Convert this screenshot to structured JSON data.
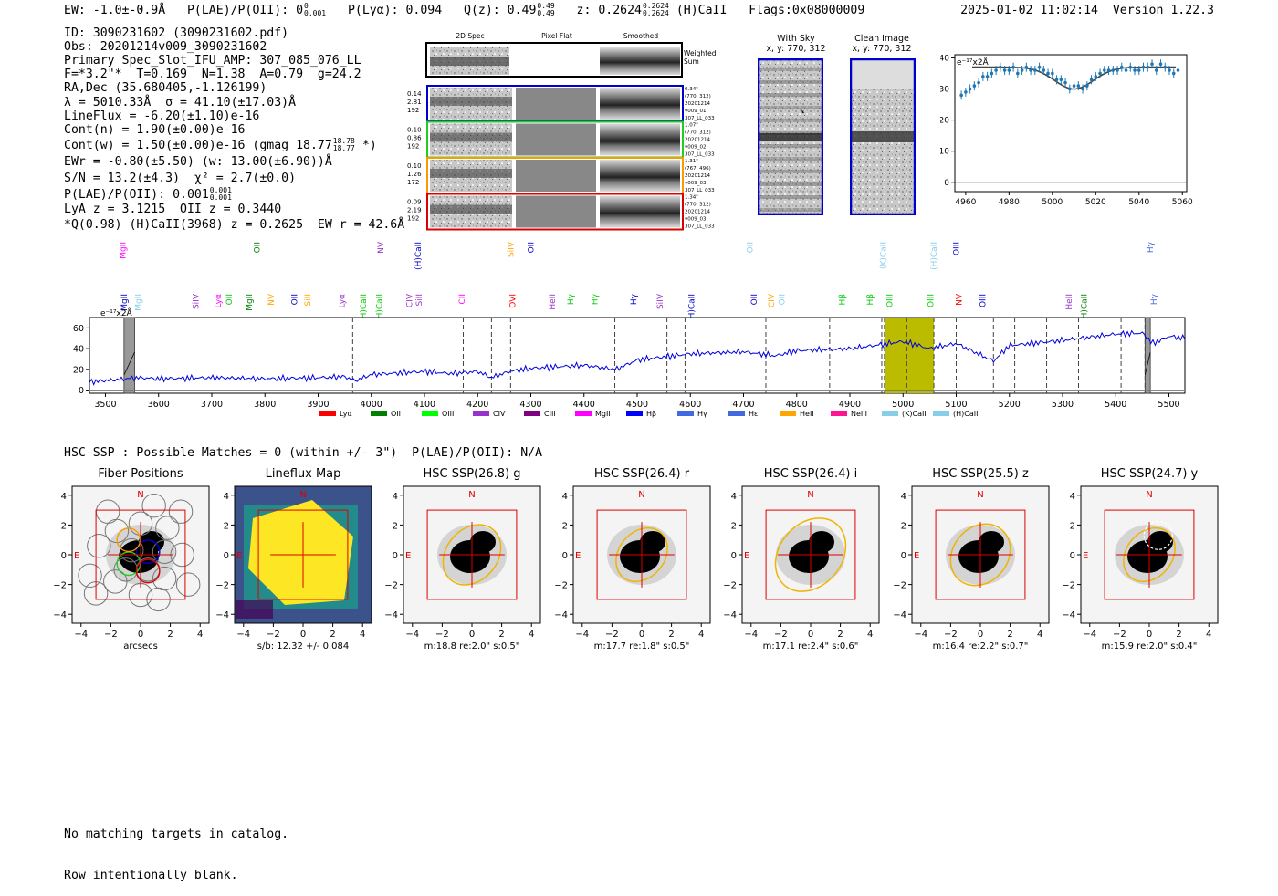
{
  "header": {
    "ew": "EW: -1.0±-0.9Å",
    "plae_label": "P(LAE)/P(OII): 0",
    "plae_sup": "0",
    "plae_sub": "0.001",
    "plya": "P(Lyα): 0.094",
    "qz": "Q(z): 0.49",
    "qz_sup": "0.49",
    "qz_sub": "0.49",
    "z": "z: 0.2624",
    "z_sup": "0.2624",
    "z_sub": "0.2624",
    "hcaii": "(H)CaII",
    "flags": "Flags:0x08000009",
    "datetime": "2025-01-02 11:02:14",
    "version": "Version 1.22.3"
  },
  "info": {
    "id": "ID: 3090231602 (3090231602.pdf)",
    "obs": "Obs: 20201214v009_3090231602",
    "primary": "Primary Spec_Slot_IFU_AMP: 307_085_076_LL",
    "params": "F=*3.2\"*  T=0.169  N=1.38  A=0.79  g=24.2",
    "radec": "RA,Dec (35.680405,-1.126199)",
    "lambda": "λ = 5010.33Å  σ = 41.10(±17.03)Å",
    "lineflux": "LineFlux = -6.20(±1.10)e-16",
    "contn": "Cont(n) = 1.90(±0.00)e-16",
    "contw": "Cont(w) = 1.50(±0.00)e-16 (gmag 18.77",
    "contw_sup": "18.78",
    "contw_sub": "18.77",
    "contw_end": "*)",
    "ewr": "EWr = -0.80(±5.50) (w: 13.00(±6.90))Å",
    "sn": "S/N = 13.2(±4.3)  χ² = 2.7(±0.0)",
    "plae": "P(LAE)/P(OII): 0.001",
    "plae_sup": "0.001",
    "plae_sub": "0.001",
    "lya": "LyA z = 3.1215  OII z = 0.3440",
    "q": "*Q(0.98) (H)CaII(3968) z = 0.2625  EW r = 42.6Å"
  },
  "cutouts": {
    "col_2d": "2D Spec",
    "col_flat": "Pixel Flat",
    "col_smooth": "Smoothed",
    "weighted": "Weighted Sum",
    "rows": [
      {
        "l1": "0.14",
        "l2": "2.81",
        "l3": "192",
        "r1": "0.34\"",
        "r2": "(770, 312)",
        "r3": "20201214",
        "r4": "v009_01",
        "r5": "307_LL_033",
        "color": "#0000cc"
      },
      {
        "l1": "0.10",
        "l2": "0.86",
        "l3": "192",
        "r1": "1.07\"",
        "r2": "(770, 312)",
        "r3": "20201214",
        "r4": "v009_02",
        "r5": "307_LL_033",
        "color": "#22cc22"
      },
      {
        "l1": "0.10",
        "l2": "1.26",
        "l3": "172",
        "r1": "1.31\"",
        "r2": "(767, 496)",
        "r3": "20201214",
        "r4": "v009_03",
        "r5": "307_LL_033",
        "color": "#ff9900"
      },
      {
        "l1": "0.09",
        "l2": "2.19",
        "l3": "192",
        "r1": "1.34\"",
        "r2": "(770, 312)",
        "r3": "20201214",
        "r4": "v009_03",
        "r5": "307_LL_033",
        "color": "#dd0000"
      }
    ],
    "with_sky_title": "With Sky",
    "with_sky_xy": "x, y: 770, 312",
    "clean_title": "Clean Image",
    "clean_xy": "x, y: 770, 312"
  },
  "chart_data": [
    {
      "type": "scatter",
      "name": "zoom-spectrum",
      "unit_label": "e⁻¹⁷x2Å",
      "xlim": [
        4955,
        5062
      ],
      "ylim": [
        -3,
        41
      ],
      "xticks": [
        4960,
        4980,
        5000,
        5020,
        5040,
        5060
      ],
      "yticks": [
        0,
        10,
        20,
        30,
        40
      ],
      "x": [
        4958,
        4960,
        4962,
        4964,
        4966,
        4968,
        4970,
        4972,
        4974,
        4976,
        4978,
        4980,
        4982,
        4984,
        4986,
        4988,
        4990,
        4992,
        4994,
        4996,
        4998,
        5000,
        5002,
        5004,
        5006,
        5008,
        5010,
        5012,
        5014,
        5016,
        5018,
        5020,
        5022,
        5024,
        5026,
        5028,
        5030,
        5032,
        5034,
        5036,
        5038,
        5040,
        5042,
        5044,
        5046,
        5048,
        5050,
        5052,
        5054,
        5056,
        5058
      ],
      "y": [
        28,
        29,
        30,
        31,
        32,
        34,
        34,
        35,
        36,
        37,
        36,
        36,
        37,
        35,
        36,
        37,
        36,
        36,
        37,
        36,
        35,
        35,
        33,
        33,
        32,
        30,
        31,
        31,
        30,
        31,
        33,
        34,
        35,
        36,
        36,
        36,
        36,
        37,
        36,
        37,
        36,
        36,
        37,
        37,
        38,
        36,
        38,
        37,
        36,
        35,
        36
      ],
      "model": "gaussian absorption fit"
    },
    {
      "type": "line",
      "name": "full-spectrum",
      "unit_label": "e⁻¹⁷x2Å",
      "xlim": [
        3470,
        5530
      ],
      "ylim": [
        -3,
        70
      ],
      "xticks": [
        3500,
        3600,
        3700,
        3800,
        3900,
        4000,
        4100,
        4200,
        4300,
        4400,
        4500,
        4600,
        4700,
        4800,
        4900,
        5000,
        5100,
        5200,
        5300,
        5400,
        5500
      ],
      "yticks": [
        0,
        20,
        40,
        60
      ],
      "anchors_x": [
        3470,
        3520,
        3560,
        3600,
        3700,
        3800,
        3900,
        3950,
        3970,
        4000,
        4100,
        4150,
        4200,
        4226,
        4260,
        4300,
        4400,
        4460,
        4500,
        4550,
        4600,
        4700,
        4760,
        4800,
        4900,
        4960,
        5000,
        5050,
        5100,
        5170,
        5200,
        5300,
        5400,
        5450,
        5470,
        5500,
        5530
      ],
      "anchors_y": [
        8,
        10,
        12,
        11,
        12,
        11,
        12,
        13,
        9,
        15,
        18,
        16,
        18,
        12,
        18,
        21,
        24,
        20,
        29,
        32,
        35,
        37,
        33,
        38,
        40,
        44,
        47,
        40,
        45,
        28,
        43,
        48,
        54,
        55,
        45,
        52,
        50
      ],
      "shaded_regions": [
        [
          3535,
          3555
        ],
        [
          5455,
          5465
        ]
      ],
      "highlight_region": [
        4965,
        5058
      ],
      "dashed_lines": [
        3965,
        4173,
        4226,
        4262,
        4458,
        4556,
        4590,
        4742,
        4862,
        4960,
        4965,
        5007,
        5058,
        5100,
        5170,
        5210,
        5270,
        5330,
        5410,
        5455
      ],
      "legend": [
        "Lyα",
        "OII",
        "OIII",
        "CIV",
        "CIII",
        "MgII",
        "Hβ",
        "Hγ",
        "Hε",
        "HeII",
        "NeIII",
        "(K)CaII",
        "(H)CaII"
      ],
      "legend_colors": [
        "#ff0000",
        "#008000",
        "#00ff00",
        "#9932cc",
        "#800080",
        "#ff00ff",
        "#0000ff",
        "#4169e1",
        "#4169e1",
        "#ffa500",
        "#ff1493",
        "#87ceeb",
        "#87ceeb"
      ],
      "line_labels_upper": [
        {
          "t": "MgII",
          "x": 3533,
          "c": "#ff00ff"
        },
        {
          "t": "OII",
          "x": 3785,
          "c": "#008000"
        },
        {
          "t": "NV",
          "x": 4018,
          "c": "#9932cc"
        },
        {
          "t": "(H)CaII",
          "x": 4088,
          "c": "#0000cc"
        },
        {
          "t": "SiIV",
          "x": 4262,
          "c": "#ffa500"
        },
        {
          "t": "OII",
          "x": 4300,
          "c": "#0000cc"
        },
        {
          "t": "OII",
          "x": 4712,
          "c": "#87ceeb"
        },
        {
          "t": "(K)CaII",
          "x": 4963,
          "c": "#87ceeb"
        },
        {
          "t": "(H)CaII",
          "x": 5058,
          "c": "#87ceeb"
        },
        {
          "t": "OIII",
          "x": 5100,
          "c": "#0000cc"
        },
        {
          "t": "Hγ",
          "x": 5465,
          "c": "#4169e1"
        }
      ],
      "line_labels_lower": [
        {
          "t": "MgII",
          "x": 3535,
          "c": "#0000cc"
        },
        {
          "t": "MgII",
          "x": 3562,
          "c": "#87ceeb"
        },
        {
          "t": "SiIV",
          "x": 3670,
          "c": "#9932cc"
        },
        {
          "t": "Lyα",
          "x": 3712,
          "c": "#ff00ff"
        },
        {
          "t": "OII",
          "x": 3733,
          "c": "#00cc00"
        },
        {
          "t": "MgII",
          "x": 3770,
          "c": "#008000"
        },
        {
          "t": "NV",
          "x": 3812,
          "c": "#ffa500"
        },
        {
          "t": "OII",
          "x": 3855,
          "c": "#0000cc"
        },
        {
          "t": "SiII",
          "x": 3880,
          "c": "#ffa500"
        },
        {
          "t": "Lyα",
          "x": 3945,
          "c": "#9932cc"
        },
        {
          "t": "(H)CaII",
          "x": 3985,
          "c": "#00cc00"
        },
        {
          "t": "(H)CaII",
          "x": 4015,
          "c": "#00cc00"
        },
        {
          "t": "CIV",
          "x": 4072,
          "c": "#9932cc"
        },
        {
          "t": "SiII",
          "x": 4090,
          "c": "#9932cc"
        },
        {
          "t": "CII",
          "x": 4170,
          "c": "#ff00ff"
        },
        {
          "t": "OVI",
          "x": 4266,
          "c": "#ff0000"
        },
        {
          "t": "HeII",
          "x": 4340,
          "c": "#9932cc"
        },
        {
          "t": "Hγ",
          "x": 4375,
          "c": "#00cc00"
        },
        {
          "t": "Hγ",
          "x": 4420,
          "c": "#00cc00"
        },
        {
          "t": "Hγ",
          "x": 4493,
          "c": "#0000cc"
        },
        {
          "t": "SiIV",
          "x": 4543,
          "c": "#9932cc"
        },
        {
          "t": "(H)CaII",
          "x": 4602,
          "c": "#0000cc"
        },
        {
          "t": "OII",
          "x": 4720,
          "c": "#0000cc"
        },
        {
          "t": "CIV",
          "x": 4752,
          "c": "#ffa500"
        },
        {
          "t": "OII",
          "x": 4772,
          "c": "#87ceeb"
        },
        {
          "t": "Hβ",
          "x": 4885,
          "c": "#00cc00"
        },
        {
          "t": "Hβ",
          "x": 4938,
          "c": "#00cc00"
        },
        {
          "t": "OIII",
          "x": 4975,
          "c": "#00cc00"
        },
        {
          "t": "OIII",
          "x": 5052,
          "c": "#00cc00"
        },
        {
          "t": "NV",
          "x": 5105,
          "c": "#ff0000"
        },
        {
          "t": "OIII",
          "x": 5150,
          "c": "#0000cc"
        },
        {
          "t": "HeII",
          "x": 5312,
          "c": "#9932cc"
        },
        {
          "t": "(H)CaII",
          "x": 5340,
          "c": "#008000"
        },
        {
          "t": "Hγ",
          "x": 5472,
          "c": "#4169e1"
        }
      ]
    }
  ],
  "hsc": {
    "summary": "HSC-SSP : Possible Matches = 0 (within +/- 3\")  P(LAE)/P(OII): N/A",
    "panels": [
      {
        "title": "Fiber Positions",
        "caption": "arcsecs"
      },
      {
        "title": "Lineflux Map",
        "caption": "s/b: 12.32 +/- 0.084"
      },
      {
        "title": "HSC SSP(26.8) g",
        "caption": "m:18.8  re:2.0\"  s:0.5\""
      },
      {
        "title": "HSC SSP(26.4) r",
        "caption": "m:17.7  re:1.8\"  s:0.5\""
      },
      {
        "title": "HSC SSP(26.4) i",
        "caption": "m:17.1  re:2.4\"  s:0.6\""
      },
      {
        "title": "HSC SSP(25.5) z",
        "caption": "m:16.4  re:2.2\"  s:0.7\""
      },
      {
        "title": "HSC SSP(24.7) y",
        "caption": "m:15.9  re:2.0\"  s:0.4\""
      }
    ],
    "axis_ticks": [
      "−4",
      "−2",
      "0",
      "2",
      "4"
    ],
    "north": "N",
    "east": "E"
  },
  "footer": {
    "line1": "No matching targets in catalog.",
    "line2": "Row intentionally blank."
  }
}
